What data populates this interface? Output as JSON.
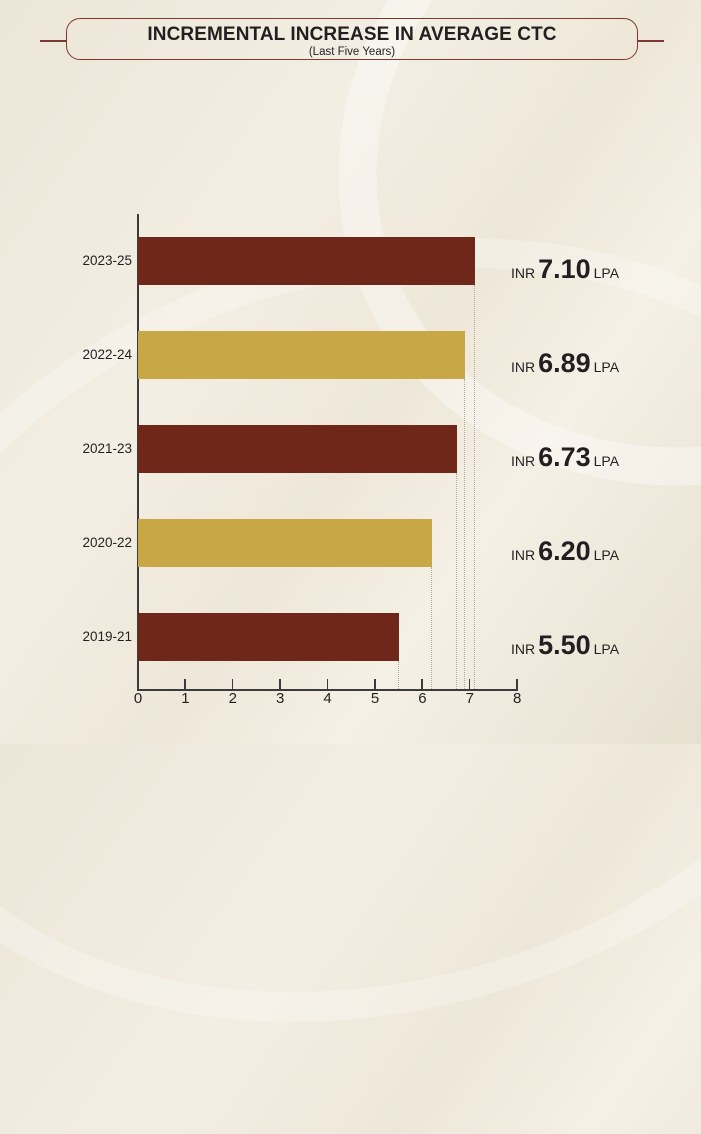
{
  "title": {
    "main": "INCREMENTAL INCREASE IN AVERAGE CTC",
    "sub": "(Last Five Years)"
  },
  "colors": {
    "maroon": "#6e2718",
    "gold": "#c8a846",
    "frame": "#7a3b2c"
  },
  "chart": {
    "bars": [
      {
        "category": "2023-25",
        "value": 7.1,
        "currency": "INR",
        "display": "7.10",
        "unit": "LPA",
        "color": "#6e2718"
      },
      {
        "category": "2022-24",
        "value": 6.89,
        "currency": "INR",
        "display": "6.89",
        "unit": "LPA",
        "color": "#c8a846"
      },
      {
        "category": "2021-23",
        "value": 6.73,
        "currency": "INR",
        "display": "6.73",
        "unit": "LPA",
        "color": "#6e2718"
      },
      {
        "category": "2020-22",
        "value": 6.2,
        "currency": "INR",
        "display": "6.20",
        "unit": "LPA",
        "color": "#c8a846"
      },
      {
        "category": "2019-21",
        "value": 5.5,
        "currency": "INR",
        "display": "5.50",
        "unit": "LPA",
        "color": "#6e2718"
      }
    ],
    "x_ticks": [
      "0",
      "1",
      "2",
      "3",
      "4",
      "5",
      "6",
      "7",
      "8"
    ]
  },
  "chart_data": {
    "type": "bar",
    "orientation": "horizontal",
    "title": "INCREMENTAL INCREASE IN AVERAGE CTC",
    "subtitle": "(Last Five Years)",
    "categories": [
      "2023-25",
      "2022-24",
      "2021-23",
      "2020-22",
      "2019-21"
    ],
    "values": [
      7.1,
      6.89,
      6.73,
      6.2,
      5.5
    ],
    "data_labels": [
      "INR 7.10 LPA",
      "INR 6.89 LPA",
      "INR 6.73 LPA",
      "INR 6.20 LPA",
      "INR 5.50 LPA"
    ],
    "xlabel": "",
    "ylabel": "",
    "xlim": [
      0,
      8
    ],
    "x_ticks": [
      0,
      1,
      2,
      3,
      4,
      5,
      6,
      7,
      8
    ],
    "grid": false,
    "legend": null
  }
}
